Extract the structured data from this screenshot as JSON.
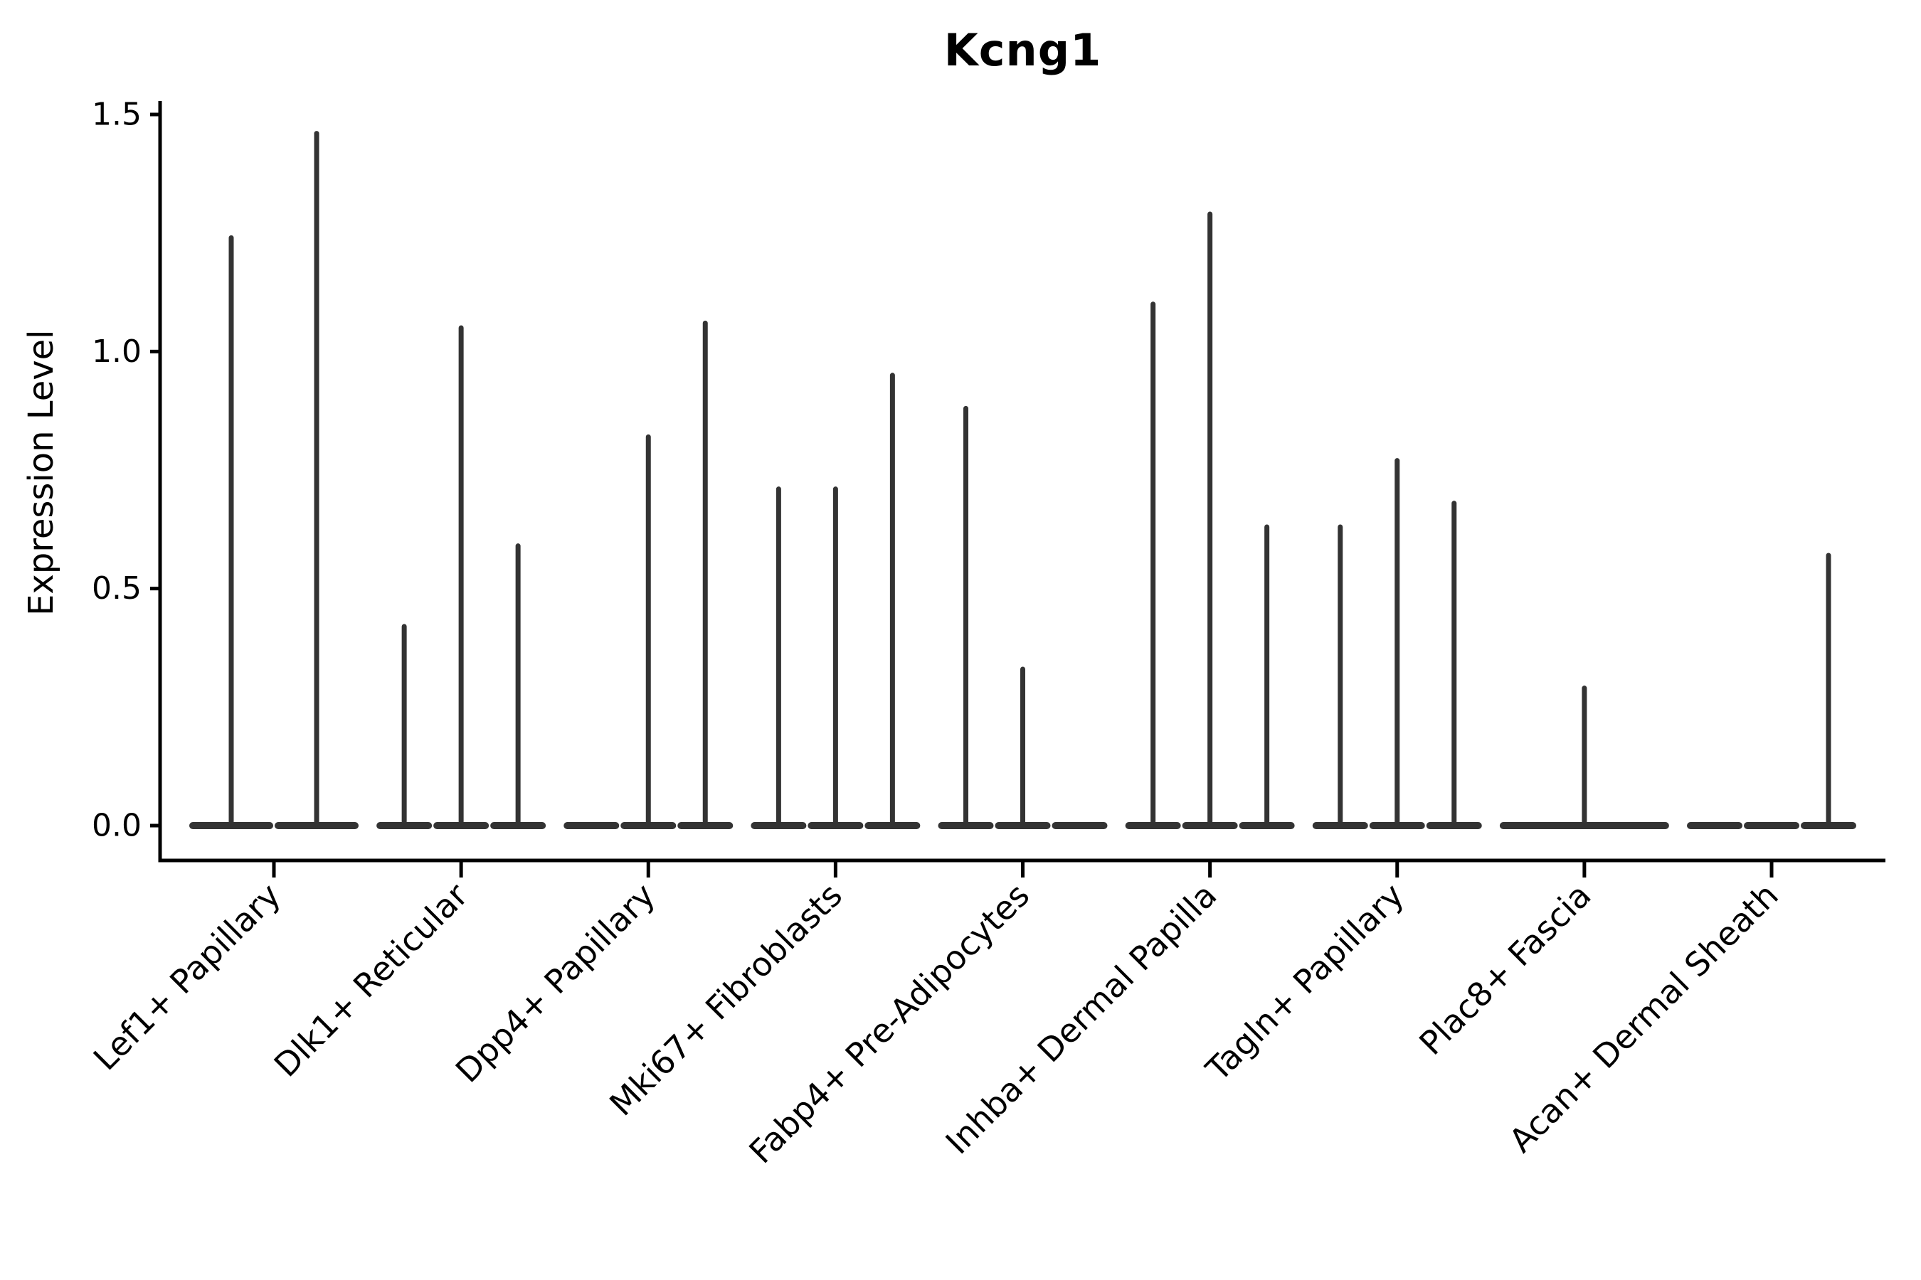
{
  "chart_data": {
    "type": "violin",
    "title": "Kcng1",
    "xlabel": "",
    "ylabel": "Expression Level",
    "ylim": [
      0,
      1.55
    ],
    "yticks": [
      0.0,
      0.5,
      1.0,
      1.5
    ],
    "ytick_labels": [
      "0.0",
      "0.5",
      "1.0",
      "1.5"
    ],
    "grid": false,
    "legend_position": "none",
    "violin_color": "#333333",
    "axis_color": "#000000",
    "categories": [
      "Lef1+ Papillary",
      "Dlk1+ Reticular",
      "Dpp4+ Papillary",
      "Mki67+ Fibroblasts",
      "Fabp4+ Pre-Adipocytes",
      "Inhba+ Dermal Papilla",
      "Tagln+ Papillary",
      "Plac8+ Fascia",
      "Acan+ Dermal Sheath"
    ],
    "violins_max_expression_per_category": [
      [
        1.24,
        1.46
      ],
      [
        0.42,
        1.05,
        0.59
      ],
      [
        0,
        0.82,
        1.06
      ],
      [
        0.71,
        0.71,
        0.95
      ],
      [
        0.88,
        0.33,
        0
      ],
      [
        1.1,
        1.29,
        0.63
      ],
      [
        0.63,
        0.77,
        0.68
      ],
      [
        0.29
      ],
      [
        0,
        0,
        0.57
      ]
    ],
    "violin_shape_note": "density concentrated at 0 (flat base), thin spike up to max expression; 0 means flat violin with no spike"
  }
}
